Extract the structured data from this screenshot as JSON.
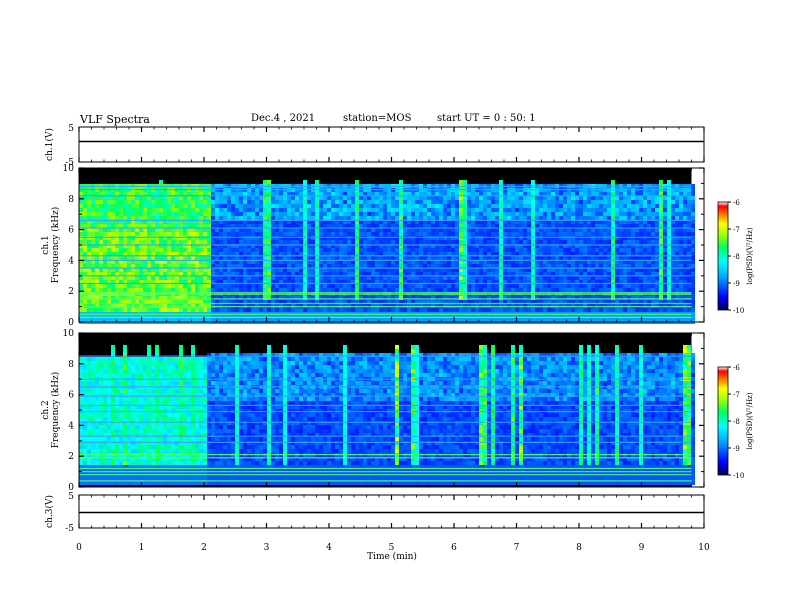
{
  "header": {
    "title": "VLF Spectra",
    "date": "Dec.4 , 2021",
    "station": "station=MOS",
    "start": "start UT =  0 : 50: 1"
  },
  "chart_data": [
    {
      "type": "line",
      "panel": "ch1-waveform",
      "ylabel": "ch.1(V)",
      "ylim": [
        -5,
        5
      ],
      "yticks": [
        5,
        -5
      ],
      "xlim": [
        0,
        10
      ],
      "description_values": {
        "baseline": 0
      }
    },
    {
      "type": "heatmap",
      "panel": "ch1-spectrogram",
      "ylabel_top": "ch.1",
      "ylabel": "Frequency (kHz)",
      "ylim": [
        0,
        10
      ],
      "yticks": [
        0,
        2,
        4,
        6,
        8,
        10
      ],
      "xlim": [
        0,
        10
      ],
      "data_extent_min": 9.8,
      "colorbar": {
        "range": [
          -10,
          -6
        ],
        "ticks": [
          -6,
          -7,
          -8,
          -9,
          -10
        ],
        "label": "log(PSD)(V²/Hz)"
      },
      "lines_khz": [
        0.3,
        0.5,
        1.0,
        1.2,
        1.5,
        1.8,
        1.9,
        2.5,
        3.0,
        3.5,
        4.0,
        4.3,
        5.0,
        5.5,
        6.1,
        6.6,
        8.2,
        8.6,
        8.8
      ]
    },
    {
      "type": "heatmap",
      "panel": "ch2-spectrogram",
      "ylabel_top": "ch.2",
      "ylabel": "Frequency (kHz)",
      "ylim": [
        0,
        10
      ],
      "yticks": [
        0,
        2,
        4,
        6,
        8,
        10
      ],
      "xlim": [
        0,
        10
      ],
      "data_extent_min": 9.8,
      "colorbar": {
        "range": [
          -10,
          -6
        ],
        "ticks": [
          -6,
          -7,
          -8,
          -9,
          -10
        ],
        "label": "log(PSD)(V²/Hz)"
      },
      "lines_khz": [
        0.4,
        0.8,
        1.0,
        1.2,
        1.9,
        2.1,
        2.9,
        3.3,
        4.2,
        4.9,
        5.3,
        5.9,
        6.5,
        7.0,
        8.5
      ]
    },
    {
      "type": "line",
      "panel": "ch3-waveform",
      "ylabel": "ch.3(V)",
      "ylim": [
        -5,
        5
      ],
      "yticks": [
        5,
        -5
      ],
      "xlim": [
        0,
        10
      ],
      "xlabel": "Time  (min)",
      "xticks": [
        0,
        1,
        2,
        3,
        4,
        5,
        6,
        7,
        8,
        9,
        10
      ],
      "description_values": {
        "baseline": 0
      }
    }
  ]
}
